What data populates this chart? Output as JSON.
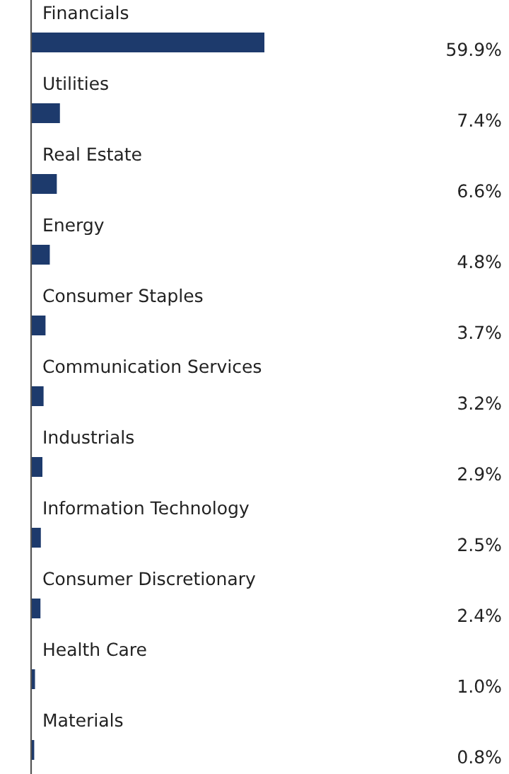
{
  "chart_data": {
    "type": "bar",
    "orientation": "horizontal",
    "data_labels": true,
    "color": "#1d3a6c",
    "categories": [
      "Financials",
      "Utilities",
      "Real Estate",
      "Energy",
      "Consumer Staples",
      "Communication Services",
      "Industrials",
      "Information Technology",
      "Consumer Discretionary",
      "Health Care",
      "Materials"
    ],
    "values": [
      59.9,
      7.4,
      6.6,
      4.8,
      3.7,
      3.2,
      2.9,
      2.5,
      2.4,
      1.0,
      0.8
    ],
    "value_labels": [
      "59.9%",
      "7.4%",
      "6.6%",
      "4.8%",
      "3.7%",
      "3.2%",
      "2.9%",
      "2.5%",
      "2.4%",
      "1.0%",
      "0.8%"
    ]
  }
}
